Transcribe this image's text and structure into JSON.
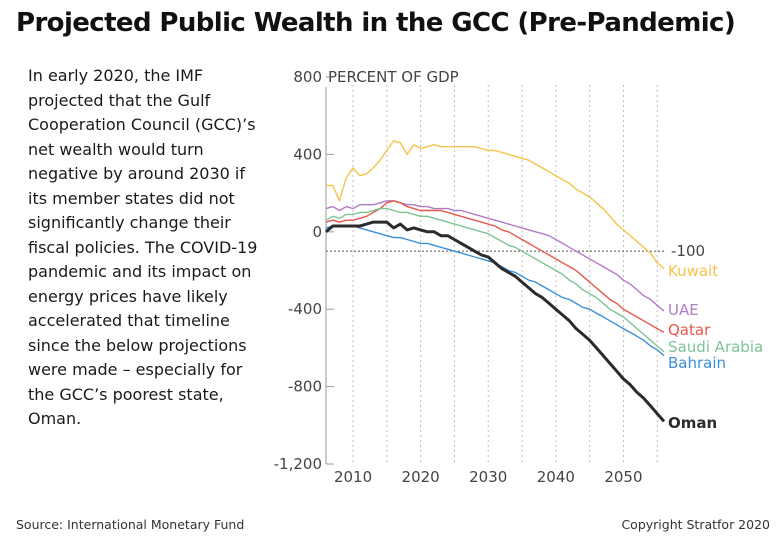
{
  "header": {
    "title": "Projected Public Wealth in the GCC (Pre-Pandemic)"
  },
  "description": "In early 2020, the IMF projected that the Gulf Cooperation Council (GCC)’s net wealth would turn negative by around 2030 if its member states did not significantly change their fiscal policies. The COVID-19 pandemic and its impact on energy prices have likely accelerated that timeline since the below projections were made – especially for the GCC’s poorest state, Oman.",
  "footer": {
    "source": "Source: International Monetary Fund",
    "copyright": "Copyright Stratfor 2020"
  },
  "chart_data": {
    "type": "line",
    "title": "Projected Public Wealth in the GCC (Pre-Pandemic)",
    "ylabel": "PERCENT OF GDP",
    "xlabel": "",
    "xlim": [
      2006,
      2056
    ],
    "ylim": [
      -1200,
      800
    ],
    "x_ticks": [
      2010,
      2020,
      2030,
      2040,
      2050
    ],
    "y_ticks": [
      800,
      400,
      0,
      -400,
      -800,
      -1200
    ],
    "y_tick_labels": [
      "800",
      "400",
      "0",
      "-400",
      "-800",
      "-1,200"
    ],
    "grid": "vertical-dotted",
    "reference_line": {
      "value": -100,
      "label": "-100"
    },
    "series": [
      {
        "name": "Kuwait",
        "color": "#f6c34a",
        "bold": false,
        "x": [
          2006,
          2007,
          2008,
          2009,
          2010,
          2011,
          2012,
          2013,
          2014,
          2015,
          2016,
          2017,
          2018,
          2019,
          2020,
          2021,
          2022,
          2023,
          2024,
          2025,
          2026,
          2027,
          2028,
          2029,
          2030,
          2031,
          2032,
          2033,
          2034,
          2035,
          2036,
          2037,
          2038,
          2039,
          2040,
          2041,
          2042,
          2043,
          2044,
          2045,
          2046,
          2047,
          2048,
          2049,
          2050,
          2051,
          2052,
          2053,
          2054,
          2055,
          2056
        ],
        "values": [
          240,
          240,
          160,
          280,
          330,
          290,
          300,
          330,
          370,
          420,
          470,
          460,
          400,
          450,
          430,
          440,
          450,
          440,
          440,
          440,
          440,
          440,
          440,
          430,
          420,
          420,
          410,
          400,
          390,
          380,
          370,
          350,
          330,
          310,
          290,
          270,
          250,
          220,
          200,
          180,
          150,
          120,
          80,
          40,
          10,
          -20,
          -50,
          -80,
          -110,
          -160,
          -190
        ]
      },
      {
        "name": "UAE",
        "color": "#b07cc6",
        "bold": false,
        "x": [
          2006,
          2007,
          2008,
          2009,
          2010,
          2011,
          2012,
          2013,
          2014,
          2015,
          2016,
          2017,
          2018,
          2019,
          2020,
          2021,
          2022,
          2023,
          2024,
          2025,
          2026,
          2027,
          2028,
          2029,
          2030,
          2031,
          2032,
          2033,
          2034,
          2035,
          2036,
          2037,
          2038,
          2039,
          2040,
          2041,
          2042,
          2043,
          2044,
          2045,
          2046,
          2047,
          2048,
          2049,
          2050,
          2051,
          2052,
          2053,
          2054,
          2055,
          2056
        ],
        "values": [
          120,
          130,
          110,
          130,
          120,
          140,
          140,
          140,
          150,
          160,
          160,
          150,
          140,
          140,
          130,
          130,
          120,
          120,
          120,
          110,
          110,
          100,
          90,
          80,
          70,
          60,
          50,
          40,
          30,
          20,
          10,
          0,
          -10,
          -20,
          -40,
          -60,
          -80,
          -100,
          -120,
          -140,
          -160,
          -180,
          -200,
          -220,
          -250,
          -270,
          -300,
          -330,
          -350,
          -380,
          -410
        ]
      },
      {
        "name": "Qatar",
        "color": "#e8564b",
        "bold": false,
        "x": [
          2006,
          2007,
          2008,
          2009,
          2010,
          2011,
          2012,
          2013,
          2014,
          2015,
          2016,
          2017,
          2018,
          2019,
          2020,
          2021,
          2022,
          2023,
          2024,
          2025,
          2026,
          2027,
          2028,
          2029,
          2030,
          2031,
          2032,
          2033,
          2034,
          2035,
          2036,
          2037,
          2038,
          2039,
          2040,
          2041,
          2042,
          2043,
          2044,
          2045,
          2046,
          2047,
          2048,
          2049,
          2050,
          2051,
          2052,
          2053,
          2054,
          2055,
          2056
        ],
        "values": [
          50,
          60,
          50,
          60,
          60,
          70,
          80,
          100,
          120,
          150,
          160,
          150,
          130,
          120,
          110,
          110,
          110,
          110,
          100,
          90,
          80,
          70,
          60,
          50,
          40,
          30,
          10,
          0,
          -20,
          -40,
          -60,
          -80,
          -100,
          -120,
          -140,
          -160,
          -180,
          -200,
          -230,
          -260,
          -290,
          -320,
          -350,
          -370,
          -400,
          -420,
          -440,
          -460,
          -480,
          -500,
          -520
        ]
      },
      {
        "name": "Saudi Arabia",
        "color": "#7cc495",
        "bold": false,
        "x": [
          2006,
          2007,
          2008,
          2009,
          2010,
          2011,
          2012,
          2013,
          2014,
          2015,
          2016,
          2017,
          2018,
          2019,
          2020,
          2021,
          2022,
          2023,
          2024,
          2025,
          2026,
          2027,
          2028,
          2029,
          2030,
          2031,
          2032,
          2033,
          2034,
          2035,
          2036,
          2037,
          2038,
          2039,
          2040,
          2041,
          2042,
          2043,
          2044,
          2045,
          2046,
          2047,
          2048,
          2049,
          2050,
          2051,
          2052,
          2053,
          2054,
          2055,
          2056
        ],
        "values": [
          60,
          80,
          70,
          90,
          90,
          100,
          100,
          110,
          120,
          120,
          110,
          100,
          100,
          90,
          80,
          80,
          70,
          60,
          50,
          40,
          30,
          20,
          10,
          0,
          -10,
          -30,
          -50,
          -70,
          -80,
          -100,
          -120,
          -140,
          -160,
          -180,
          -200,
          -220,
          -250,
          -270,
          -300,
          -320,
          -340,
          -370,
          -400,
          -420,
          -440,
          -470,
          -500,
          -530,
          -560,
          -590,
          -620
        ]
      },
      {
        "name": "Bahrain",
        "color": "#3b8fd9",
        "bold": false,
        "x": [
          2006,
          2007,
          2008,
          2009,
          2010,
          2011,
          2012,
          2013,
          2014,
          2015,
          2016,
          2017,
          2018,
          2019,
          2020,
          2021,
          2022,
          2023,
          2024,
          2025,
          2026,
          2027,
          2028,
          2029,
          2030,
          2031,
          2032,
          2033,
          2034,
          2035,
          2036,
          2037,
          2038,
          2039,
          2040,
          2041,
          2042,
          2043,
          2044,
          2045,
          2046,
          2047,
          2048,
          2049,
          2050,
          2051,
          2052,
          2053,
          2054,
          2055,
          2056
        ],
        "values": [
          20,
          30,
          30,
          30,
          30,
          20,
          10,
          0,
          -10,
          -20,
          -30,
          -30,
          -40,
          -50,
          -60,
          -60,
          -70,
          -80,
          -90,
          -100,
          -110,
          -120,
          -130,
          -140,
          -150,
          -160,
          -180,
          -200,
          -210,
          -230,
          -250,
          -260,
          -280,
          -300,
          -320,
          -340,
          -350,
          -370,
          -390,
          -400,
          -420,
          -440,
          -460,
          -480,
          -500,
          -520,
          -540,
          -560,
          -590,
          -610,
          -640
        ]
      },
      {
        "name": "Oman",
        "color": "#2b2b2b",
        "bold": true,
        "x": [
          2006,
          2007,
          2008,
          2009,
          2010,
          2011,
          2012,
          2013,
          2014,
          2015,
          2016,
          2017,
          2018,
          2019,
          2020,
          2021,
          2022,
          2023,
          2024,
          2025,
          2026,
          2027,
          2028,
          2029,
          2030,
          2031,
          2032,
          2033,
          2034,
          2035,
          2036,
          2037,
          2038,
          2039,
          2040,
          2041,
          2042,
          2043,
          2044,
          2045,
          2046,
          2047,
          2048,
          2049,
          2050,
          2051,
          2052,
          2053,
          2054,
          2055,
          2056
        ],
        "values": [
          0,
          30,
          30,
          30,
          30,
          30,
          40,
          50,
          50,
          50,
          20,
          40,
          10,
          20,
          10,
          0,
          0,
          -20,
          -20,
          -40,
          -60,
          -80,
          -100,
          -120,
          -130,
          -160,
          -190,
          -210,
          -230,
          -260,
          -290,
          -320,
          -340,
          -370,
          -400,
          -430,
          -460,
          -500,
          -530,
          -560,
          -600,
          -640,
          -680,
          -720,
          -760,
          -790,
          -830,
          -860,
          -900,
          -940,
          -980
        ]
      }
    ]
  }
}
